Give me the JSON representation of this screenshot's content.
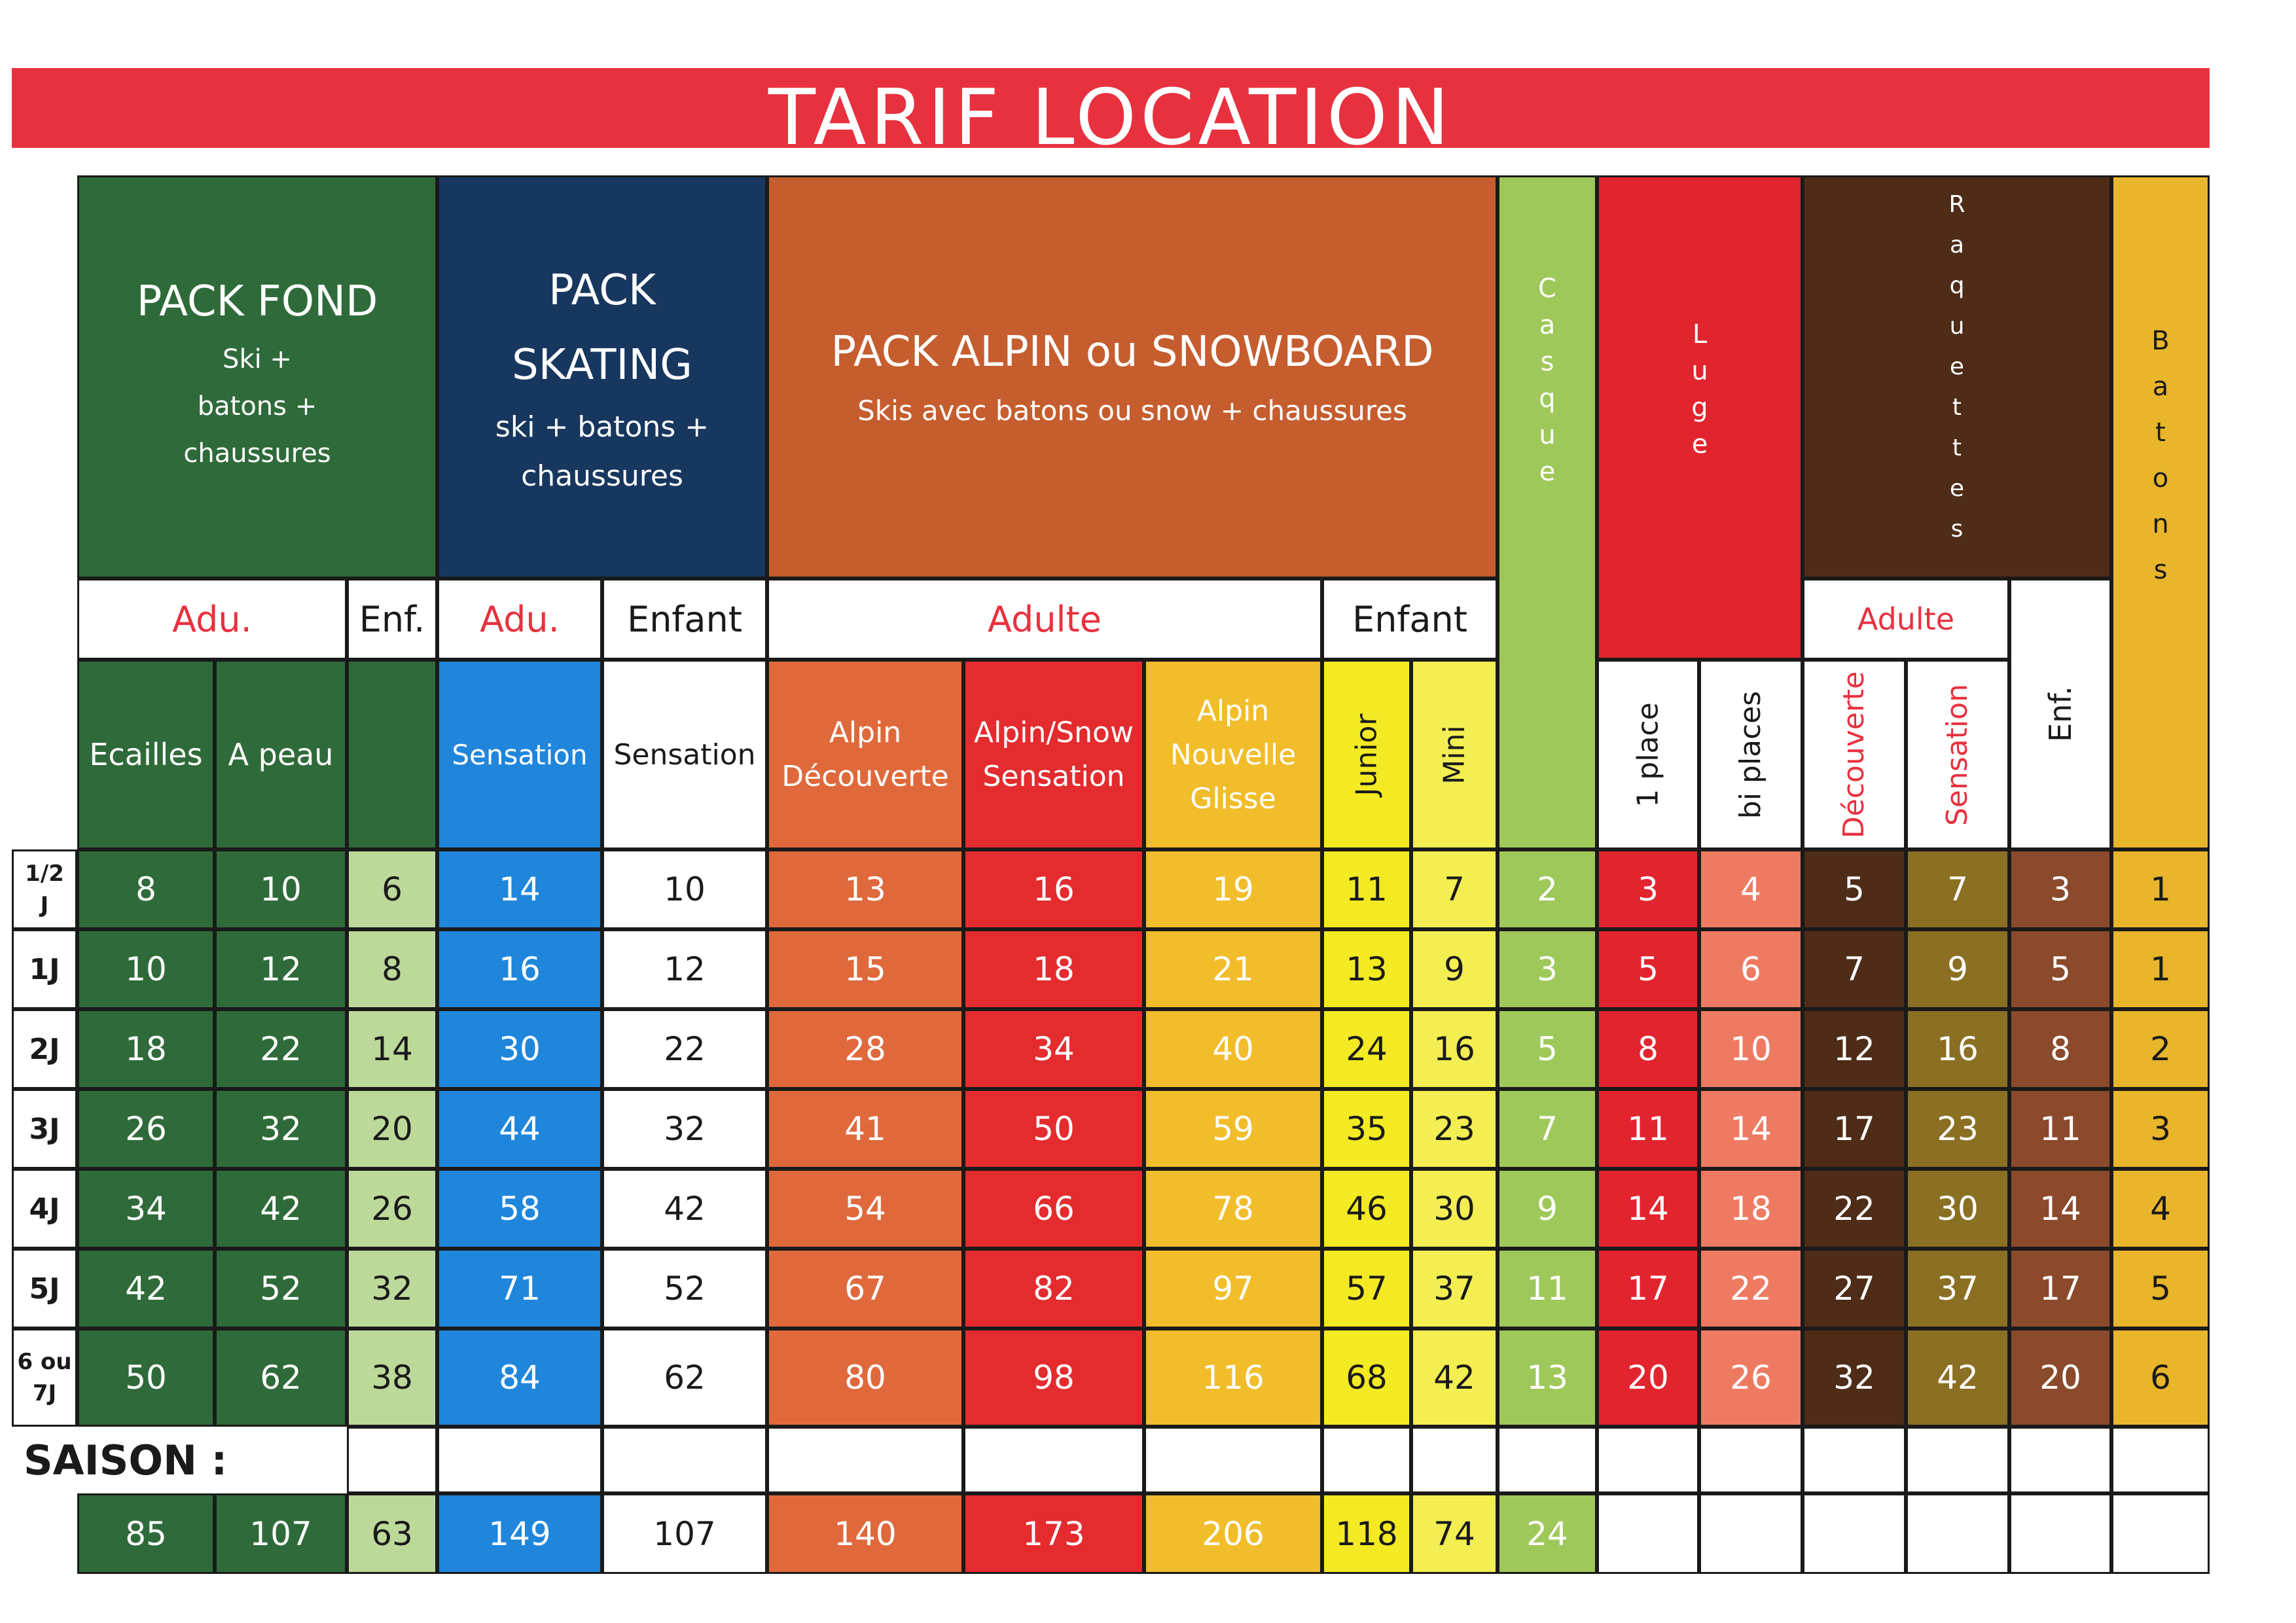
{
  "title": "TARIF LOCATION",
  "colors": {
    "banner": "#e8313f",
    "fond": "#2f6b3a",
    "fond_enf": "#bcd99a",
    "skating_hdr": "#17375f",
    "skating_adu": "#1f86dc",
    "skating_enf": "#ffffff",
    "alpin_hdr": "#c65d2e",
    "alpin_dec": "#e0693c",
    "alpin_sens": "#e42b2e",
    "alpin_glisse": "#f2bd2a",
    "junior": "#f3ea24",
    "mini": "#f3ee52",
    "casque": "#9fc85a",
    "luge": "#e2242e",
    "luge_bi": "#ef7a62",
    "raquettes_hdr": "#4e2c17",
    "raq_dec": "#4e2c17",
    "raq_sens": "#8b6f22",
    "raq_enf": "#8b4a2b",
    "batons": "#e8b52b"
  },
  "groups": {
    "fond": {
      "title": "PACK FOND",
      "lines": [
        "Ski +",
        "batons +",
        "chaussures"
      ]
    },
    "skating": {
      "title_lines": [
        "PACK",
        "SKATING"
      ],
      "lines": [
        "ski + batons +",
        "chaussures"
      ]
    },
    "alpin": {
      "title": "PACK ALPIN ou SNOWBOARD",
      "subtitle": "Skis avec batons ou snow + chaussures"
    },
    "casque": "Casque",
    "luge": "Luge",
    "raquettes": "Raquettes",
    "batons": "Batons"
  },
  "subgroups": {
    "fond_adu": "Adu.",
    "fond_enf": "Enf.",
    "skating_adu": "Adu.",
    "skating_enf": "Enfant",
    "alpin_adulte": "Adulte",
    "alpin_enfant": "Enfant",
    "raq_adulte": "Adulte"
  },
  "columns": {
    "ecailles": "Ecailles",
    "a_peau": "A peau",
    "sk_sensation_adu": "Sensation",
    "sk_sensation_enf": "Sensation",
    "alpin_decouverte": [
      "Alpin",
      "Découverte"
    ],
    "alpin_sensation": [
      "Alpin/Snow",
      "Sensation"
    ],
    "alpin_glisse": [
      "Alpin",
      "Nouvelle",
      "Glisse"
    ],
    "junior": "Junior",
    "mini": "Mini",
    "luge_1place": "1 place",
    "luge_bi": "bi places",
    "raq_decouverte": "Découverte",
    "raq_sensation": "Sensation",
    "raq_enf": "Enf."
  },
  "rows": [
    {
      "label": [
        "1/2",
        "J"
      ],
      "values": [
        "8",
        "10",
        "6",
        "14",
        "10",
        "13",
        "16",
        "19",
        "11",
        "7",
        "2",
        "3",
        "4",
        "5",
        "7",
        "3",
        "1"
      ]
    },
    {
      "label": [
        "1J"
      ],
      "values": [
        "10",
        "12",
        "8",
        "16",
        "12",
        "15",
        "18",
        "21",
        "13",
        "9",
        "3",
        "5",
        "6",
        "7",
        "9",
        "5",
        "1"
      ]
    },
    {
      "label": [
        "2J"
      ],
      "values": [
        "18",
        "22",
        "14",
        "30",
        "22",
        "28",
        "34",
        "40",
        "24",
        "16",
        "5",
        "8",
        "10",
        "12",
        "16",
        "8",
        "2"
      ]
    },
    {
      "label": [
        "3J"
      ],
      "values": [
        "26",
        "32",
        "20",
        "44",
        "32",
        "41",
        "50",
        "59",
        "35",
        "23",
        "7",
        "11",
        "14",
        "17",
        "23",
        "11",
        "3"
      ]
    },
    {
      "label": [
        "4J"
      ],
      "values": [
        "34",
        "42",
        "26",
        "58",
        "42",
        "54",
        "66",
        "78",
        "46",
        "30",
        "9",
        "14",
        "18",
        "22",
        "30",
        "14",
        "4"
      ]
    },
    {
      "label": [
        "5J"
      ],
      "values": [
        "42",
        "52",
        "32",
        "71",
        "52",
        "67",
        "82",
        "97",
        "57",
        "37",
        "11",
        "17",
        "22",
        "27",
        "37",
        "17",
        "5"
      ]
    },
    {
      "label": [
        "6 ou",
        "7J"
      ],
      "values": [
        "50",
        "62",
        "38",
        "84",
        "62",
        "80",
        "98",
        "116",
        "68",
        "42",
        "13",
        "20",
        "26",
        "32",
        "42",
        "20",
        "6"
      ]
    }
  ],
  "saison": {
    "label": "SAISON :",
    "values": [
      "85",
      "107",
      "63",
      "149",
      "107",
      "140",
      "173",
      "206",
      "118",
      "74",
      "24",
      "",
      "",
      "",
      "",
      "",
      ""
    ]
  }
}
